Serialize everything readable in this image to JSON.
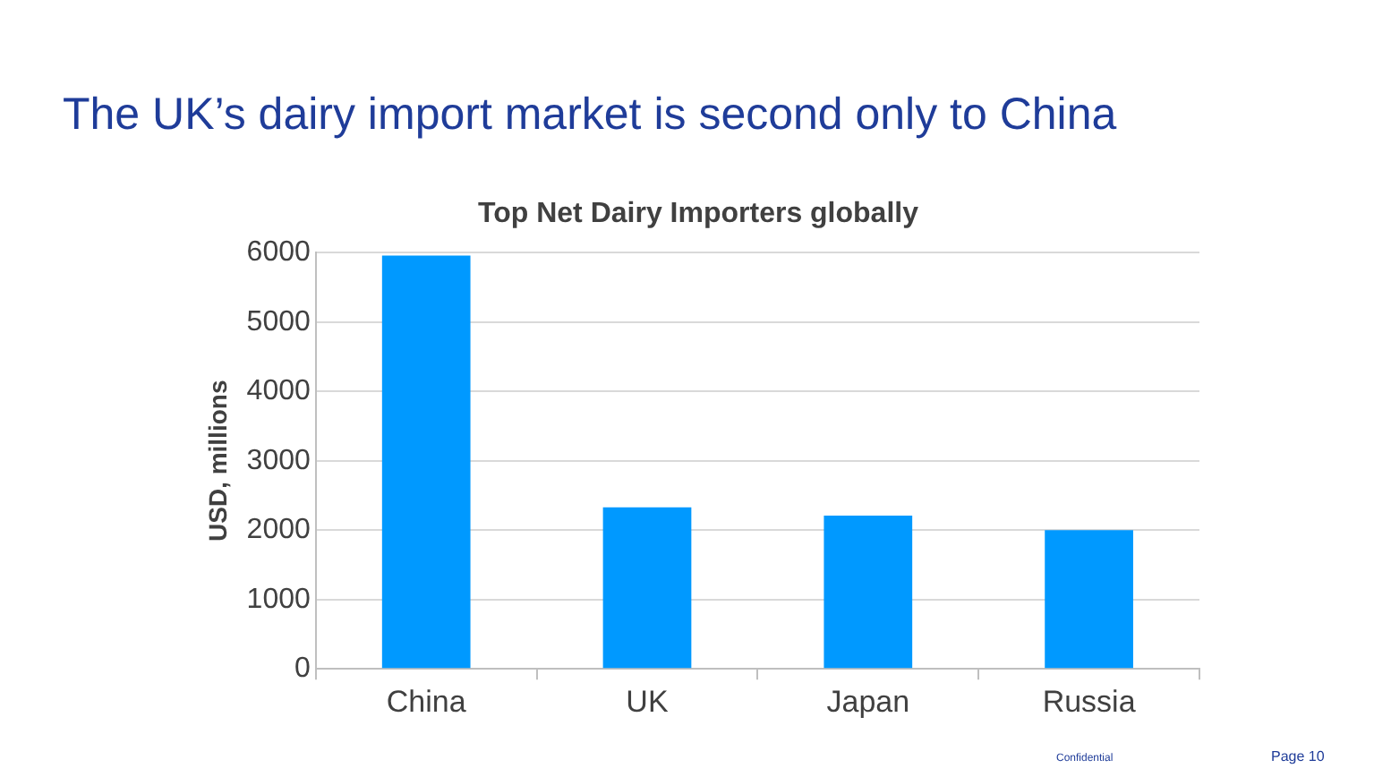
{
  "chart_data": {
    "type": "bar",
    "title": "The UK’s dairy import market is second only to China",
    "subtitle": "Top Net Dairy Importers globally",
    "ylabel": "USD, millions",
    "categories": [
      "China",
      "UK",
      "Japan",
      "Russia"
    ],
    "values": [
      5960,
      2330,
      2210,
      2000
    ],
    "color": "#0099ff",
    "ylim": [
      0,
      6000
    ],
    "yticks": [
      0,
      1000,
      2000,
      3000,
      4000,
      5000,
      6000
    ],
    "grid": "y",
    "legend": false,
    "annotations": [
      "Confidential",
      "Page 10"
    ]
  }
}
